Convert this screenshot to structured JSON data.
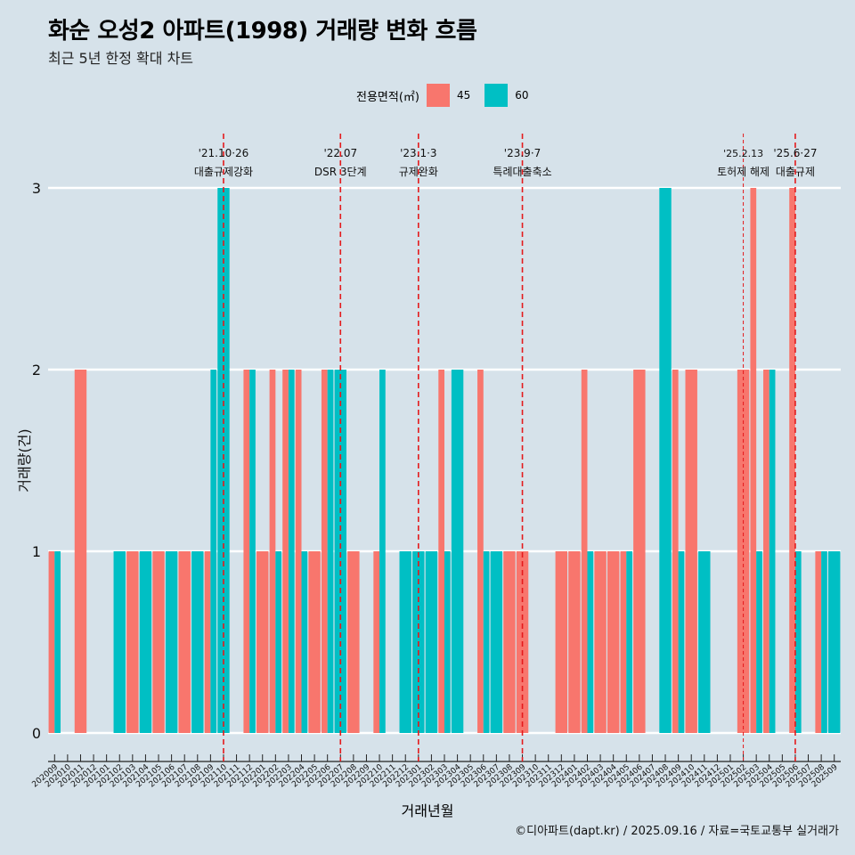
{
  "title": "화순 오성2 아파트(1998) 거래량 변화 흐름",
  "subtitle": "최근 5년 한정 확대 차트",
  "caption": "©디아파트(dapt.kr) / 2025.09.16 / 자료=국토교통부 실거래가",
  "legend": {
    "title": "전용면적(㎡)",
    "items": [
      {
        "label": "45",
        "color": "#f8766d"
      },
      {
        "label": "60",
        "color": "#00bfc4"
      }
    ]
  },
  "chart_data": {
    "type": "bar",
    "title": "화순 오성2 아파트(1998) 거래량 변화 흐름",
    "xlabel": "거래년월",
    "ylabel": "거래량(건)",
    "ylim": [
      0,
      3
    ],
    "yticks": [
      0,
      1,
      2,
      3
    ],
    "months": [
      "202009",
      "202010",
      "202011",
      "202012",
      "202101",
      "202102",
      "202103",
      "202104",
      "202105",
      "202106",
      "202107",
      "202108",
      "202109",
      "202110",
      "202111",
      "202112",
      "202201",
      "202202",
      "202203",
      "202204",
      "202205",
      "202206",
      "202207",
      "202208",
      "202209",
      "202210",
      "202211",
      "202212",
      "202301",
      "202302",
      "202303",
      "202304",
      "202305",
      "202306",
      "202307",
      "202308",
      "202309",
      "202310",
      "202311",
      "202312",
      "202401",
      "202402",
      "202403",
      "202404",
      "202405",
      "202406",
      "202407",
      "202408",
      "202409",
      "202410",
      "202411",
      "202412",
      "202501",
      "202502",
      "202503",
      "202504",
      "202505",
      "202506",
      "202507",
      "202508",
      "202509"
    ],
    "series": [
      {
        "name": "45",
        "color": "#f8766d",
        "values": {
          "202009": 1,
          "202011": 2,
          "202103": 1,
          "202105": 1,
          "202107": 1,
          "202109": 1,
          "202112": 2,
          "202201": 1,
          "202202": 2,
          "202203": 2,
          "202204": 2,
          "202205": 1,
          "202206": 2,
          "202208": 1,
          "202210": 1,
          "202303": 2,
          "202306": 2,
          "202308": 1,
          "202309": 1,
          "202312": 1,
          "202401": 1,
          "202402": 2,
          "202403": 1,
          "202404": 1,
          "202405": 1,
          "202406": 2,
          "202409": 2,
          "202410": 2,
          "202502": 2,
          "202503": 3,
          "202504": 2,
          "202506": 3,
          "202508": 1
        }
      },
      {
        "name": "60",
        "color": "#00bfc4",
        "values": {
          "202009": 1,
          "202102": 1,
          "202104": 1,
          "202106": 1,
          "202108": 1,
          "202109": 2,
          "202110": 3,
          "202112": 2,
          "202202": 1,
          "202203": 2,
          "202204": 1,
          "202206": 2,
          "202207": 2,
          "202210": 2,
          "202212": 1,
          "202301": 1,
          "202302": 1,
          "202303": 1,
          "202304": 2,
          "202306": 1,
          "202307": 1,
          "202402": 1,
          "202405": 1,
          "202408": 3,
          "202409": 1,
          "202411": 1,
          "202503": 1,
          "202504": 2,
          "202506": 1,
          "202508": 1,
          "202509": 1
        }
      }
    ],
    "annotations": [
      {
        "month": "202110",
        "date": "'21.10·26",
        "text": "대출규제강화",
        "style": "dashed"
      },
      {
        "month": "202207",
        "date": "'22.07",
        "text": "DSR 3단계",
        "style": "dashed"
      },
      {
        "month": "202301",
        "date": "'23.1·3",
        "text": "규제완화",
        "style": "dashed"
      },
      {
        "month": "202309",
        "date": "'23.9·7",
        "text": "특례대출축소",
        "style": "dashed"
      },
      {
        "month": "202502",
        "date": "'25.2.13",
        "text": "토허제 해제",
        "style": "thin-dashed"
      },
      {
        "month": "202506",
        "date": "'25.6·27",
        "text": "대출규제",
        "style": "dashed"
      }
    ]
  }
}
